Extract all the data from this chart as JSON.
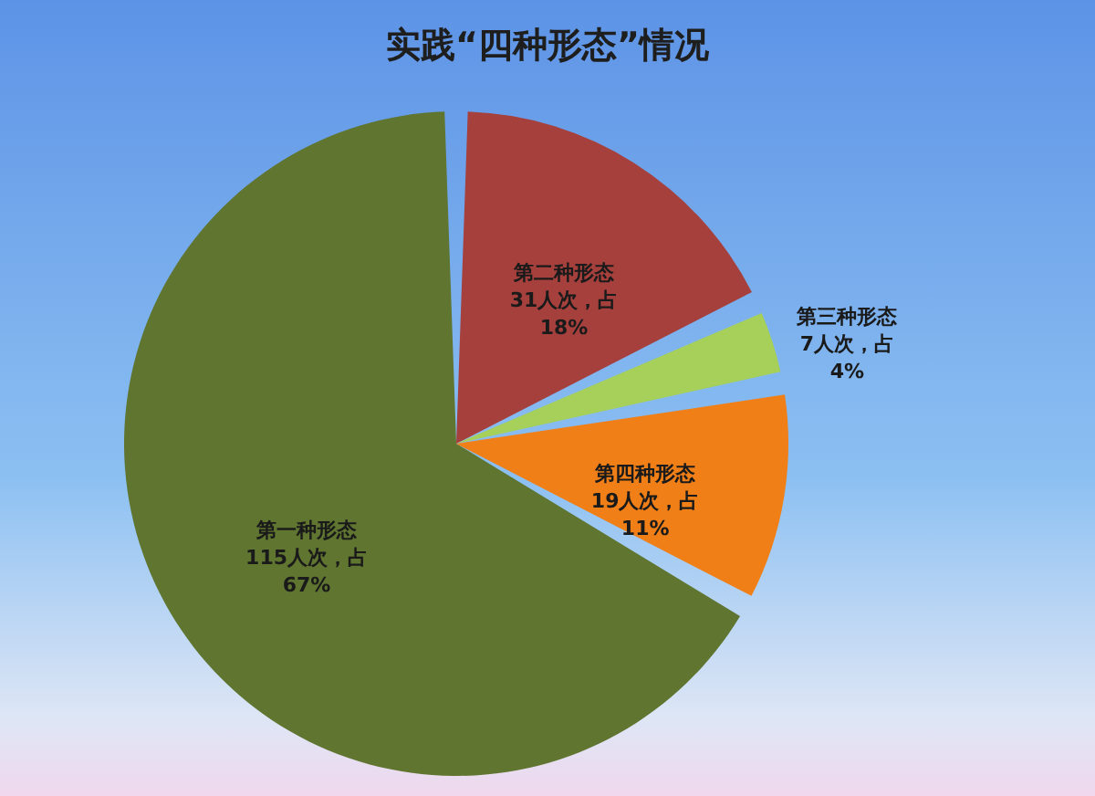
{
  "chart_data": {
    "type": "pie",
    "title": "实践“四种形态”情况",
    "categories": [
      "第一种形态",
      "第二种形态",
      "第三种形态",
      "第四种形态"
    ],
    "values": [
      115,
      31,
      7,
      19
    ],
    "colors": [
      "#5f7530",
      "#a5403d",
      "#a6d05a",
      "#f07f17"
    ],
    "value_labels": [
      "115人次，占\n67%",
      "31人次，占\n18%",
      "7人次，占\n4%",
      "19人次，占\n11%"
    ],
    "legend": false
  }
}
